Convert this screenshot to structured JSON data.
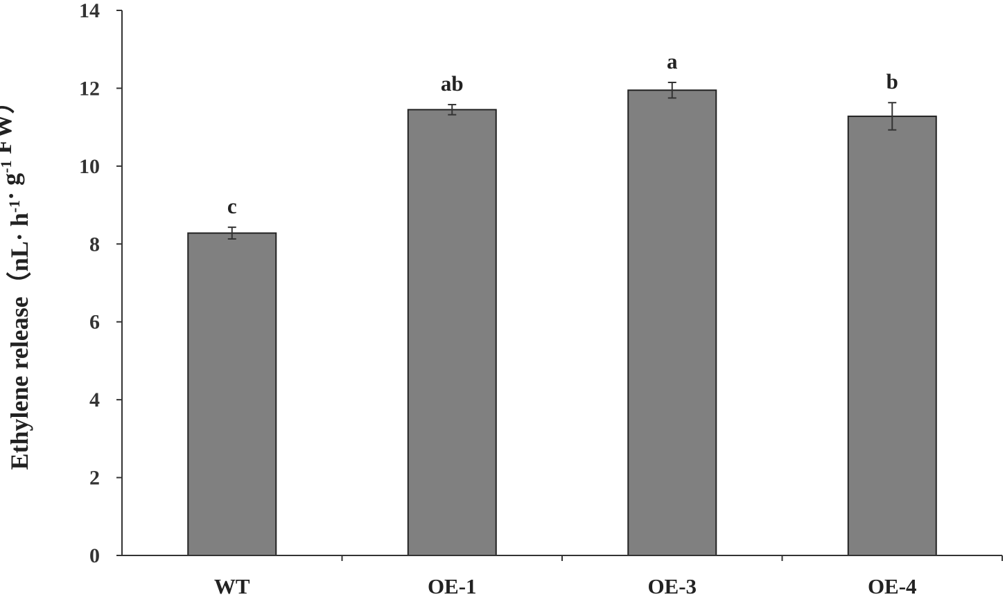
{
  "chart_data": {
    "type": "bar",
    "title": "",
    "xlabel": "",
    "ylabel": {
      "parts": [
        {
          "text": "Ethylene release（nL",
          "sup": false
        },
        {
          "text": "·",
          "sup": false
        },
        {
          "text": " h",
          "sup": false
        },
        {
          "text": "-1",
          "sup": true
        },
        {
          "text": "·",
          "sup": false
        },
        {
          "text": " g",
          "sup": false
        },
        {
          "text": "-1",
          "sup": true
        },
        {
          "text": " FW）",
          "sup": false
        }
      ]
    },
    "categories": [
      "WT",
      "OE-1",
      "OE-3",
      "OE-4"
    ],
    "values": [
      8.28,
      11.45,
      11.95,
      11.28
    ],
    "errors": [
      0.15,
      0.13,
      0.2,
      0.35
    ],
    "significance": [
      "c",
      "ab",
      "a",
      "b"
    ],
    "ylim": [
      0,
      14
    ],
    "yticks": [
      0,
      2,
      4,
      6,
      8,
      10,
      12,
      14
    ],
    "bar_color": "#808080",
    "grid": false,
    "legend": "none"
  }
}
